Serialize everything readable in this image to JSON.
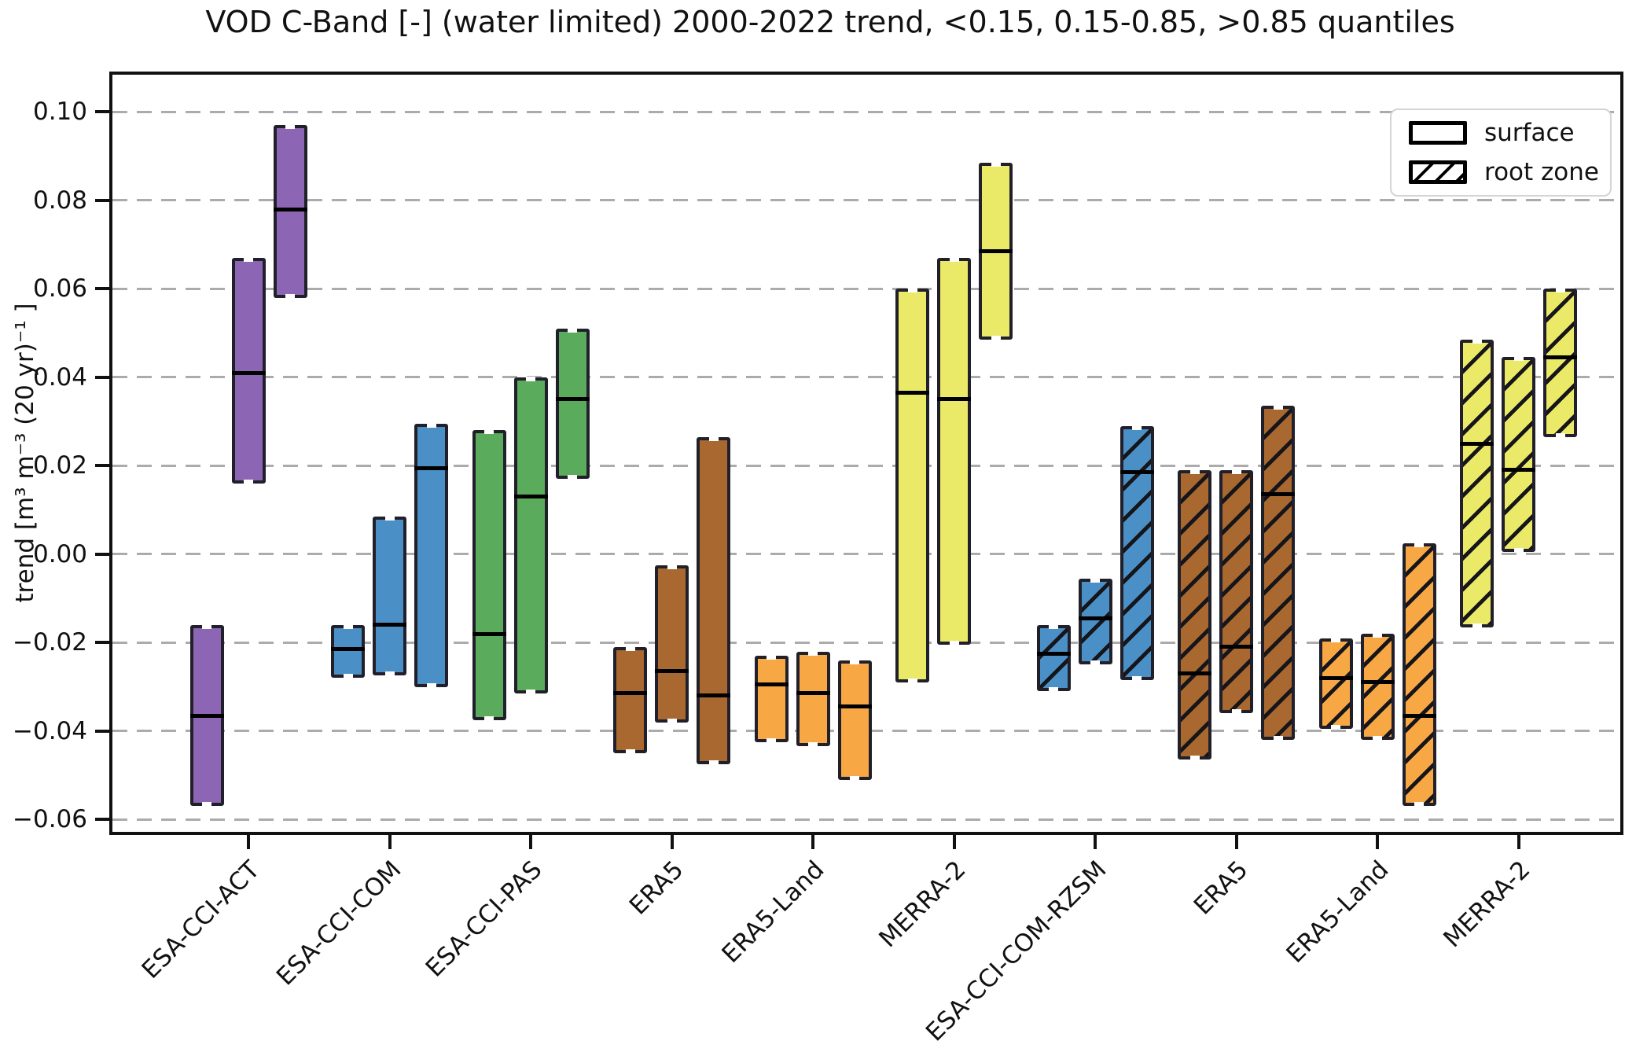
{
  "title": "VOD C-Band [-] (water limited) 2000-2022 trend, <0.15, 0.15-0.85, >0.85 quantiles",
  "ylabel": "trend [m³ m⁻³ (20 yr)⁻¹ ]",
  "legend": {
    "surface_label": "surface",
    "root_zone_label": "root zone"
  },
  "colors": {
    "purple": "#8c66b4",
    "blue": "#4a90c6",
    "green": "#5aab5c",
    "brown": "#a8682f",
    "orange": "#f7a845",
    "yellow": "#ebe968",
    "box_edge": "#21202a",
    "median": "#000000",
    "grid": "#ababab",
    "hatch": "#15151a"
  },
  "chart_data": {
    "type": "grouped-quantile-box",
    "title": "VOD C-Band [-] (water limited) 2000-2022 trend, <0.15, 0.15-0.85, >0.85 quantiles",
    "ylabel": "trend [m³ m⁻³ (20 yr)⁻¹ ]",
    "quantile_groups": [
      "<0.15",
      "0.15-0.85",
      ">0.85"
    ],
    "grid": "horizontal-dashed",
    "legend_position": "upper right",
    "ylim": [
      -0.0628,
      0.1084
    ],
    "yticks": [
      {
        "value": 0.1,
        "label": "0.10"
      },
      {
        "value": 0.08,
        "label": "0.08"
      },
      {
        "value": 0.06,
        "label": "0.06"
      },
      {
        "value": 0.04,
        "label": "0.04"
      },
      {
        "value": 0.02,
        "label": "0.02"
      },
      {
        "value": 0.0,
        "label": "0.00"
      },
      {
        "value": -0.02,
        "label": "−0.02"
      },
      {
        "value": -0.04,
        "label": "−0.04"
      },
      {
        "value": -0.06,
        "label": "−0.06"
      }
    ],
    "categories": [
      {
        "label": "ESA-CCI-ACT",
        "zone": "surface",
        "color_key": "purple",
        "hatch": false,
        "boxes": [
          {
            "low": -0.057,
            "median": -0.0365,
            "high": -0.016
          },
          {
            "low": 0.016,
            "median": 0.041,
            "high": 0.067
          },
          {
            "low": 0.058,
            "median": 0.078,
            "high": 0.097
          }
        ]
      },
      {
        "label": "ESA-CCI-COM",
        "zone": "surface",
        "color_key": "blue",
        "hatch": false,
        "boxes": [
          {
            "low": -0.028,
            "median": -0.0215,
            "high": -0.016
          },
          {
            "low": -0.0275,
            "median": -0.016,
            "high": 0.0085
          },
          {
            "low": -0.03,
            "median": 0.0195,
            "high": 0.0295
          }
        ]
      },
      {
        "label": "ESA-CCI-PAS",
        "zone": "surface",
        "color_key": "green",
        "hatch": false,
        "boxes": [
          {
            "low": -0.0375,
            "median": -0.018,
            "high": 0.028
          },
          {
            "low": -0.0315,
            "median": 0.013,
            "high": 0.04
          },
          {
            "low": 0.017,
            "median": 0.035,
            "high": 0.051
          }
        ]
      },
      {
        "label": "ERA5",
        "zone": "surface",
        "color_key": "brown",
        "hatch": false,
        "boxes": [
          {
            "low": -0.045,
            "median": -0.0315,
            "high": -0.021
          },
          {
            "low": -0.038,
            "median": -0.0265,
            "high": -0.0025
          },
          {
            "low": -0.0475,
            "median": -0.032,
            "high": 0.0265
          }
        ]
      },
      {
        "label": "ERA5-Land",
        "zone": "surface",
        "color_key": "orange",
        "hatch": false,
        "boxes": [
          {
            "low": -0.0425,
            "median": -0.0295,
            "high": -0.023
          },
          {
            "low": -0.0435,
            "median": -0.0315,
            "high": -0.022
          },
          {
            "low": -0.051,
            "median": -0.0345,
            "high": -0.024
          }
        ]
      },
      {
        "label": "MERRA-2",
        "zone": "surface",
        "color_key": "yellow",
        "hatch": false,
        "boxes": [
          {
            "low": -0.029,
            "median": 0.0365,
            "high": 0.06
          },
          {
            "low": -0.0205,
            "median": 0.035,
            "high": 0.067
          },
          {
            "low": 0.0485,
            "median": 0.0685,
            "high": 0.0885
          }
        ]
      },
      {
        "label": "ESA-CCI-COM-RZSM",
        "zone": "root zone",
        "color_key": "blue",
        "hatch": true,
        "boxes": [
          {
            "low": -0.031,
            "median": -0.0225,
            "high": -0.016
          },
          {
            "low": -0.025,
            "median": -0.0145,
            "high": -0.0055
          },
          {
            "low": -0.0285,
            "median": 0.0185,
            "high": 0.029
          }
        ]
      },
      {
        "label": "ERA5",
        "zone": "root zone",
        "color_key": "brown",
        "hatch": true,
        "boxes": [
          {
            "low": -0.0465,
            "median": -0.027,
            "high": 0.019
          },
          {
            "low": -0.036,
            "median": -0.021,
            "high": 0.019
          },
          {
            "low": -0.042,
            "median": 0.0135,
            "high": 0.0335
          }
        ]
      },
      {
        "label": "ERA5-Land",
        "zone": "root zone",
        "color_key": "orange",
        "hatch": true,
        "boxes": [
          {
            "low": -0.0395,
            "median": -0.028,
            "high": -0.019
          },
          {
            "low": -0.042,
            "median": -0.029,
            "high": -0.018
          },
          {
            "low": -0.057,
            "median": -0.0365,
            "high": 0.0025
          }
        ]
      },
      {
        "label": "MERRA-2",
        "zone": "root zone",
        "color_key": "yellow",
        "hatch": true,
        "boxes": [
          {
            "low": -0.0165,
            "median": 0.025,
            "high": 0.0485
          },
          {
            "low": 0.0005,
            "median": 0.019,
            "high": 0.0445
          },
          {
            "low": 0.0265,
            "median": 0.0445,
            "high": 0.06
          }
        ]
      }
    ]
  }
}
